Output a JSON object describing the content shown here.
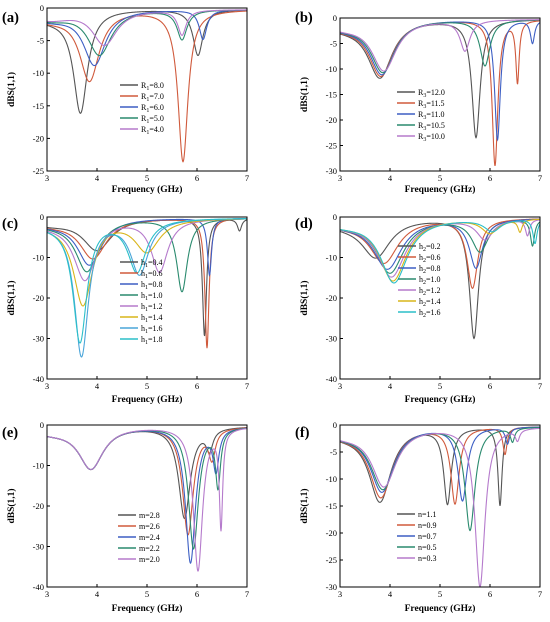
{
  "chart_data": [
    {
      "type": "line",
      "panel_label": "(a)",
      "xlabel": "Frequency (GHz)",
      "ylabel": "dBS(1,1)",
      "xlim": [
        3,
        7
      ],
      "ylim": [
        -25,
        0
      ],
      "xticks": [
        3,
        4,
        5,
        6,
        7
      ],
      "yticks": [
        -25,
        -20,
        -15,
        -10,
        -5,
        0
      ],
      "legend_position": "lower-center",
      "series": [
        {
          "name": "R1=8.0",
          "color": "#555555",
          "dips": [
            {
              "f": 3.67,
              "depth": -15.5,
              "w": 0.17
            },
            {
              "f": 6.02,
              "depth": -7.0,
              "w": 0.12
            }
          ]
        },
        {
          "name": "R1=7.0",
          "color": "#d05a3c",
          "dips": [
            {
              "f": 3.85,
              "depth": -10.8,
              "w": 0.24
            },
            {
              "f": 5.72,
              "depth": -23.2,
              "w": 0.12
            }
          ]
        },
        {
          "name": "R1=6.0",
          "color": "#3d5fc4",
          "dips": [
            {
              "f": 3.95,
              "depth": -8.5,
              "w": 0.27
            },
            {
              "f": 6.12,
              "depth": -4.5,
              "w": 0.09
            }
          ]
        },
        {
          "name": "R1=5.0",
          "color": "#2a8a6e",
          "dips": [
            {
              "f": 4.05,
              "depth": -7.0,
              "w": 0.29
            },
            {
              "f": 5.7,
              "depth": -4.5,
              "w": 0.12
            }
          ]
        },
        {
          "name": "R1=4.0",
          "color": "#b57acc",
          "dips": [
            {
              "f": 4.15,
              "depth": -5.5,
              "w": 0.3
            },
            {
              "f": 5.7,
              "depth": -3.8,
              "w": 0.1
            }
          ]
        }
      ]
    },
    {
      "type": "line",
      "panel_label": "(b)",
      "xlabel": "Frequency (GHz)",
      "ylabel": "dBS(1,1)",
      "xlim": [
        3,
        7
      ],
      "ylim": [
        -30,
        0
      ],
      "xticks": [
        3,
        4,
        5,
        6,
        7
      ],
      "yticks": [
        -30,
        -25,
        -20,
        -15,
        -10,
        -5,
        0
      ],
      "legend_position": "center-right",
      "series": [
        {
          "name": "R3=12.0",
          "color": "#555555",
          "dips": [
            {
              "f": 3.8,
              "depth": -11.3,
              "w": 0.3
            },
            {
              "f": 5.72,
              "depth": -23.0,
              "w": 0.1
            }
          ]
        },
        {
          "name": "R3=11.5",
          "color": "#d05a3c",
          "dips": [
            {
              "f": 3.82,
              "depth": -11.0,
              "w": 0.3
            },
            {
              "f": 6.1,
              "depth": -28.5,
              "w": 0.07
            },
            {
              "f": 6.55,
              "depth": -12.0,
              "w": 0.04
            }
          ]
        },
        {
          "name": "R3=11.0",
          "color": "#3d5fc4",
          "dips": [
            {
              "f": 3.84,
              "depth": -10.7,
              "w": 0.3
            },
            {
              "f": 6.15,
              "depth": -23.5,
              "w": 0.07
            },
            {
              "f": 6.85,
              "depth": -4.5,
              "w": 0.05
            }
          ]
        },
        {
          "name": "R3=10.5",
          "color": "#2a8a6e",
          "dips": [
            {
              "f": 3.86,
              "depth": -10.3,
              "w": 0.3
            },
            {
              "f": 5.9,
              "depth": -9.0,
              "w": 0.12
            }
          ]
        },
        {
          "name": "R3=10.0",
          "color": "#b57acc",
          "dips": [
            {
              "f": 3.88,
              "depth": -10.0,
              "w": 0.3
            },
            {
              "f": 5.5,
              "depth": -6.0,
              "w": 0.12
            }
          ]
        }
      ]
    },
    {
      "type": "line",
      "panel_label": "(c)",
      "xlabel": "Frequency (GHz)",
      "ylabel": "dBS(1,1)",
      "xlim": [
        3,
        7
      ],
      "ylim": [
        -40,
        0
      ],
      "xticks": [
        3,
        4,
        5,
        6,
        7
      ],
      "yticks": [
        -40,
        -30,
        -20,
        -10,
        0
      ],
      "legend_position": "lower-center",
      "series": [
        {
          "name": "h1=0.4",
          "color": "#555555",
          "dips": [
            {
              "f": 4.0,
              "depth": -8.0,
              "w": 0.35
            },
            {
              "f": 6.15,
              "depth": -29.0,
              "w": 0.05
            },
            {
              "f": 6.85,
              "depth": -3.0,
              "w": 0.05
            }
          ]
        },
        {
          "name": "h1=0.6",
          "color": "#d05a3c",
          "dips": [
            {
              "f": 3.92,
              "depth": -10.0,
              "w": 0.33
            },
            {
              "f": 6.2,
              "depth": -32.0,
              "w": 0.05
            }
          ]
        },
        {
          "name": "h1=0.8",
          "color": "#3d5fc4",
          "dips": [
            {
              "f": 3.85,
              "depth": -11.5,
              "w": 0.3
            },
            {
              "f": 6.25,
              "depth": -14.0,
              "w": 0.05
            }
          ]
        },
        {
          "name": "h1=1.0",
          "color": "#2a8a6e",
          "dips": [
            {
              "f": 3.8,
              "depth": -13.0,
              "w": 0.28
            },
            {
              "f": 5.7,
              "depth": -18.0,
              "w": 0.13
            }
          ]
        },
        {
          "name": "h1=1.2",
          "color": "#b57acc",
          "dips": [
            {
              "f": 3.76,
              "depth": -15.0,
              "w": 0.27
            },
            {
              "f": 5.25,
              "depth": -13.0,
              "w": 0.2
            }
          ]
        },
        {
          "name": "h1=1.4",
          "color": "#d9b51a",
          "dips": [
            {
              "f": 3.72,
              "depth": -21.0,
              "w": 0.23
            },
            {
              "f": 5.0,
              "depth": -8.0,
              "w": 0.3
            }
          ]
        },
        {
          "name": "h1=1.6",
          "color": "#4aa5d9",
          "dips": [
            {
              "f": 3.69,
              "depth": -33.5,
              "w": 0.17
            },
            {
              "f": 4.85,
              "depth": -13.5,
              "w": 0.22
            }
          ]
        },
        {
          "name": "h1=1.8",
          "color": "#2bbfc9",
          "dips": [
            {
              "f": 3.66,
              "depth": -30.0,
              "w": 0.17
            },
            {
              "f": 4.8,
              "depth": -13.0,
              "w": 0.22
            }
          ]
        }
      ]
    },
    {
      "type": "line",
      "panel_label": "(d)",
      "xlabel": "Frequency (GHz)",
      "ylabel": "dBS(1,1)",
      "xlim": [
        3,
        7
      ],
      "ylim": [
        -40,
        0
      ],
      "xticks": [
        3,
        4,
        5,
        6,
        7
      ],
      "yticks": [
        -40,
        -30,
        -20,
        -10,
        0
      ],
      "legend_position": "center-right",
      "series": [
        {
          "name": "h2=0.2",
          "color": "#555555",
          "dips": [
            {
              "f": 3.72,
              "depth": -9.5,
              "w": 0.35
            },
            {
              "f": 5.68,
              "depth": -29.5,
              "w": 0.11
            }
          ]
        },
        {
          "name": "h2=0.6",
          "color": "#d05a3c",
          "dips": [
            {
              "f": 3.88,
              "depth": -11.0,
              "w": 0.35
            },
            {
              "f": 5.65,
              "depth": -17.0,
              "w": 0.13
            }
          ]
        },
        {
          "name": "h2=0.8",
          "color": "#3d5fc4",
          "dips": [
            {
              "f": 3.95,
              "depth": -12.5,
              "w": 0.35
            },
            {
              "f": 5.72,
              "depth": -12.0,
              "w": 0.16
            }
          ]
        },
        {
          "name": "h2=1.0",
          "color": "#2a8a6e",
          "dips": [
            {
              "f": 4.0,
              "depth": -13.5,
              "w": 0.34
            },
            {
              "f": 5.8,
              "depth": -8.0,
              "w": 0.2
            },
            {
              "f": 6.85,
              "depth": -6.5,
              "w": 0.05
            }
          ]
        },
        {
          "name": "h2=1.2",
          "color": "#b57acc",
          "dips": [
            {
              "f": 4.03,
              "depth": -14.5,
              "w": 0.34
            },
            {
              "f": 5.9,
              "depth": -5.0,
              "w": 0.2
            },
            {
              "f": 6.75,
              "depth": -4.0,
              "w": 0.05
            }
          ]
        },
        {
          "name": "h2=1.4",
          "color": "#d9b51a",
          "dips": [
            {
              "f": 4.06,
              "depth": -15.5,
              "w": 0.33
            },
            {
              "f": 6.0,
              "depth": -3.5,
              "w": 0.2
            },
            {
              "f": 6.6,
              "depth": -3.0,
              "w": 0.05
            }
          ]
        },
        {
          "name": "h2=1.6",
          "color": "#2bbfc9",
          "dips": [
            {
              "f": 4.08,
              "depth": -16.0,
              "w": 0.33
            },
            {
              "f": 6.05,
              "depth": -3.0,
              "w": 0.2
            },
            {
              "f": 6.9,
              "depth": -6.0,
              "w": 0.05
            }
          ]
        }
      ]
    },
    {
      "type": "line",
      "panel_label": "(e)",
      "xlabel": "Frequency (GHz)",
      "ylabel": "dBS(1,1)",
      "xlim": [
        3,
        7
      ],
      "ylim": [
        -40,
        0
      ],
      "xticks": [
        3,
        4,
        5,
        6,
        7
      ],
      "yticks": [
        -40,
        -30,
        -20,
        -10,
        0
      ],
      "legend_position": "lower-center",
      "series": [
        {
          "name": "m=2.8",
          "color": "#555555",
          "dips": [
            {
              "f": 3.88,
              "depth": -10.5,
              "w": 0.3
            },
            {
              "f": 5.75,
              "depth": -22.5,
              "w": 0.14
            },
            {
              "f": 6.25,
              "depth": -5.0,
              "w": 0.08
            }
          ]
        },
        {
          "name": "m=2.6",
          "color": "#d05a3c",
          "dips": [
            {
              "f": 3.88,
              "depth": -10.5,
              "w": 0.3
            },
            {
              "f": 5.82,
              "depth": -26.5,
              "w": 0.13
            },
            {
              "f": 6.3,
              "depth": -7.0,
              "w": 0.08
            }
          ]
        },
        {
          "name": "m=2.4",
          "color": "#3d5fc4",
          "dips": [
            {
              "f": 3.88,
              "depth": -10.5,
              "w": 0.3
            },
            {
              "f": 5.87,
              "depth": -33.5,
              "w": 0.12
            },
            {
              "f": 6.38,
              "depth": -10.0,
              "w": 0.07
            }
          ]
        },
        {
          "name": "m=2.2",
          "color": "#2a8a6e",
          "dips": [
            {
              "f": 3.88,
              "depth": -10.5,
              "w": 0.3
            },
            {
              "f": 5.93,
              "depth": -30.0,
              "w": 0.12
            },
            {
              "f": 6.42,
              "depth": -14.0,
              "w": 0.06
            }
          ]
        },
        {
          "name": "m=2.0",
          "color": "#b57acc",
          "dips": [
            {
              "f": 3.88,
              "depth": -10.5,
              "w": 0.3
            },
            {
              "f": 6.02,
              "depth": -35.5,
              "w": 0.11
            },
            {
              "f": 6.48,
              "depth": -24.0,
              "w": 0.04
            }
          ]
        }
      ]
    },
    {
      "type": "line",
      "panel_label": "(f)",
      "xlabel": "Frequency (GHz)",
      "ylabel": "dBS(1,1)",
      "xlim": [
        3,
        7
      ],
      "ylim": [
        -30,
        0
      ],
      "xticks": [
        3,
        4,
        5,
        6,
        7
      ],
      "yticks": [
        -30,
        -25,
        -20,
        -15,
        -10,
        -5,
        0
      ],
      "legend_position": "lower-center",
      "series": [
        {
          "name": "n=1.1",
          "color": "#555555",
          "dips": [
            {
              "f": 3.8,
              "depth": -13.8,
              "w": 0.27
            },
            {
              "f": 5.15,
              "depth": -14.0,
              "w": 0.09
            },
            {
              "f": 6.2,
              "depth": -14.5,
              "w": 0.05
            }
          ]
        },
        {
          "name": "n=0.9",
          "color": "#d05a3c",
          "dips": [
            {
              "f": 3.82,
              "depth": -13.0,
              "w": 0.28
            },
            {
              "f": 5.3,
              "depth": -14.0,
              "w": 0.1
            },
            {
              "f": 6.3,
              "depth": -5.0,
              "w": 0.05
            }
          ]
        },
        {
          "name": "n=0.7",
          "color": "#3d5fc4",
          "dips": [
            {
              "f": 3.84,
              "depth": -12.0,
              "w": 0.29
            },
            {
              "f": 5.45,
              "depth": -13.5,
              "w": 0.11
            },
            {
              "f": 6.35,
              "depth": -3.0,
              "w": 0.05
            }
          ]
        },
        {
          "name": "n=0.5",
          "color": "#2a8a6e",
          "dips": [
            {
              "f": 3.86,
              "depth": -11.5,
              "w": 0.3
            },
            {
              "f": 5.6,
              "depth": -19.0,
              "w": 0.12
            },
            {
              "f": 6.45,
              "depth": -2.5,
              "w": 0.05
            }
          ]
        },
        {
          "name": "n=0.3",
          "color": "#b57acc",
          "dips": [
            {
              "f": 3.88,
              "depth": -11.0,
              "w": 0.3
            },
            {
              "f": 5.8,
              "depth": -29.5,
              "w": 0.12
            },
            {
              "f": 6.55,
              "depth": -2.0,
              "w": 0.05
            }
          ]
        }
      ]
    }
  ]
}
